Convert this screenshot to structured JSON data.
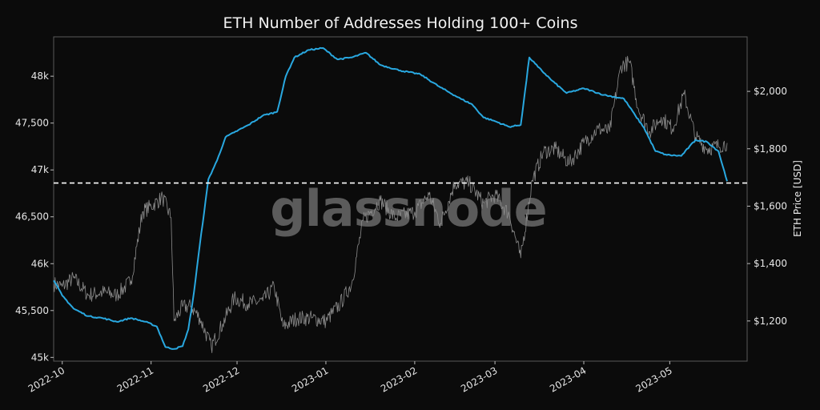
{
  "chart_data": {
    "type": "line",
    "title": "ETH Number of Addresses Holding 100+ Coins",
    "watermark": "glassnode",
    "y_left": {
      "ticks": [
        45000,
        45500,
        46000,
        46500,
        47000,
        47500,
        48000
      ],
      "tick_labels": [
        "45k",
        "45,500",
        "46k",
        "46,500",
        "47k",
        "47,500",
        "48k"
      ],
      "range": [
        44960,
        48420
      ]
    },
    "y_right": {
      "label": "ETH Price [USD]",
      "ticks": [
        1200,
        1400,
        1600,
        1800,
        2000
      ],
      "tick_labels": [
        "$1,200",
        "$1,400",
        "$1,600",
        "$1,800",
        "$2,000"
      ],
      "range": [
        1060,
        2190
      ]
    },
    "x": {
      "range": [
        "2022-09-28",
        "2023-05-28"
      ],
      "tick_labels": [
        "2022-10",
        "2022-11",
        "2022-12",
        "2023-01",
        "2023-02",
        "2023-03",
        "2023-04",
        "2023-05"
      ],
      "ticks": [
        "2022-10-01",
        "2022-11-01",
        "2022-12-01",
        "2023-01-01",
        "2023-02-01",
        "2023-03-01",
        "2023-04-01",
        "2023-05-01"
      ]
    },
    "reference_line": {
      "y": 46860,
      "style": "dashed",
      "color": "#ffffff"
    },
    "series": [
      {
        "axis": "left",
        "color": "#29a8e0",
        "points": [
          [
            "2022-09-28",
            45820
          ],
          [
            "2022-10-01",
            45660
          ],
          [
            "2022-10-05",
            45520
          ],
          [
            "2022-10-10",
            45440
          ],
          [
            "2022-10-15",
            45420
          ],
          [
            "2022-10-20",
            45380
          ],
          [
            "2022-10-25",
            45420
          ],
          [
            "2022-10-30",
            45380
          ],
          [
            "2022-11-03",
            45330
          ],
          [
            "2022-11-06",
            45110
          ],
          [
            "2022-11-09",
            45090
          ],
          [
            "2022-11-12",
            45120
          ],
          [
            "2022-11-14",
            45300
          ],
          [
            "2022-11-16",
            45700
          ],
          [
            "2022-11-18",
            46200
          ],
          [
            "2022-11-21",
            46900
          ],
          [
            "2022-11-24",
            47100
          ],
          [
            "2022-11-27",
            47350
          ],
          [
            "2022-11-30",
            47400
          ],
          [
            "2022-12-05",
            47480
          ],
          [
            "2022-12-10",
            47580
          ],
          [
            "2022-12-15",
            47620
          ],
          [
            "2022-12-18",
            48000
          ],
          [
            "2022-12-21",
            48200
          ],
          [
            "2022-12-26",
            48280
          ],
          [
            "2022-12-31",
            48300
          ],
          [
            "2023-01-05",
            48180
          ],
          [
            "2023-01-10",
            48200
          ],
          [
            "2023-01-15",
            48250
          ],
          [
            "2023-01-20",
            48120
          ],
          [
            "2023-01-27",
            48060
          ],
          [
            "2023-02-03",
            48020
          ],
          [
            "2023-02-10",
            47880
          ],
          [
            "2023-02-17",
            47760
          ],
          [
            "2023-02-21",
            47700
          ],
          [
            "2023-02-25",
            47560
          ],
          [
            "2023-03-01",
            47520
          ],
          [
            "2023-03-06",
            47460
          ],
          [
            "2023-03-10",
            47480
          ],
          [
            "2023-03-13",
            48200
          ],
          [
            "2023-03-16",
            48100
          ],
          [
            "2023-03-21",
            47950
          ],
          [
            "2023-03-26",
            47820
          ],
          [
            "2023-04-01",
            47870
          ],
          [
            "2023-04-08",
            47800
          ],
          [
            "2023-04-15",
            47760
          ],
          [
            "2023-04-19",
            47580
          ],
          [
            "2023-04-22",
            47450
          ],
          [
            "2023-04-26",
            47200
          ],
          [
            "2023-04-30",
            47160
          ],
          [
            "2023-05-05",
            47150
          ],
          [
            "2023-05-10",
            47320
          ],
          [
            "2023-05-14",
            47300
          ],
          [
            "2023-05-18",
            47200
          ],
          [
            "2023-05-21",
            46880
          ]
        ]
      },
      {
        "axis": "right",
        "color": "#8c8c8c",
        "points": [
          [
            "2022-09-28",
            1330
          ],
          [
            "2022-10-01",
            1320
          ],
          [
            "2022-10-05",
            1350
          ],
          [
            "2022-10-10",
            1290
          ],
          [
            "2022-10-15",
            1300
          ],
          [
            "2022-10-20",
            1290
          ],
          [
            "2022-10-25",
            1340
          ],
          [
            "2022-10-29",
            1580
          ],
          [
            "2022-11-01",
            1600
          ],
          [
            "2022-11-05",
            1630
          ],
          [
            "2022-11-08",
            1560
          ],
          [
            "2022-11-09",
            1200
          ],
          [
            "2022-11-12",
            1250
          ],
          [
            "2022-11-15",
            1250
          ],
          [
            "2022-11-18",
            1210
          ],
          [
            "2022-11-22",
            1110
          ],
          [
            "2022-11-26",
            1190
          ],
          [
            "2022-11-30",
            1280
          ],
          [
            "2022-12-05",
            1260
          ],
          [
            "2022-12-10",
            1270
          ],
          [
            "2022-12-14",
            1320
          ],
          [
            "2022-12-17",
            1180
          ],
          [
            "2022-12-22",
            1210
          ],
          [
            "2022-12-27",
            1210
          ],
          [
            "2023-01-01",
            1200
          ],
          [
            "2023-01-06",
            1260
          ],
          [
            "2023-01-10",
            1330
          ],
          [
            "2023-01-14",
            1550
          ],
          [
            "2023-01-20",
            1620
          ],
          [
            "2023-01-25",
            1560
          ],
          [
            "2023-02-01",
            1580
          ],
          [
            "2023-02-06",
            1640
          ],
          [
            "2023-02-10",
            1540
          ],
          [
            "2023-02-15",
            1680
          ],
          [
            "2023-02-20",
            1680
          ],
          [
            "2023-02-25",
            1610
          ],
          [
            "2023-03-01",
            1640
          ],
          [
            "2023-03-06",
            1570
          ],
          [
            "2023-03-10",
            1420
          ],
          [
            "2023-03-14",
            1690
          ],
          [
            "2023-03-18",
            1790
          ],
          [
            "2023-03-22",
            1800
          ],
          [
            "2023-03-27",
            1750
          ],
          [
            "2023-04-01",
            1820
          ],
          [
            "2023-04-06",
            1870
          ],
          [
            "2023-04-10",
            1860
          ],
          [
            "2023-04-14",
            2090
          ],
          [
            "2023-04-17",
            2100
          ],
          [
            "2023-04-20",
            1940
          ],
          [
            "2023-04-24",
            1860
          ],
          [
            "2023-04-28",
            1910
          ],
          [
            "2023-05-02",
            1870
          ],
          [
            "2023-05-06",
            1990
          ],
          [
            "2023-05-10",
            1840
          ],
          [
            "2023-05-14",
            1800
          ],
          [
            "2023-05-18",
            1810
          ],
          [
            "2023-05-21",
            1820
          ]
        ]
      }
    ]
  }
}
